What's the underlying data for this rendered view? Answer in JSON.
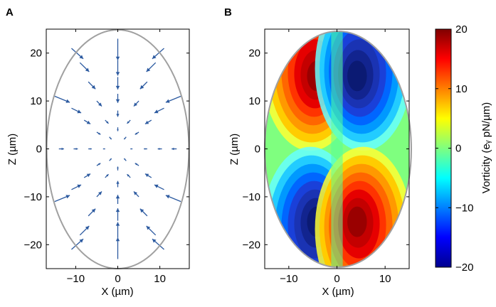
{
  "chart_data": [
    {
      "type": "vector_field",
      "panel": "A",
      "xlabel": "X (µm)",
      "ylabel": "Z (µm)",
      "xlim": [
        -17,
        17
      ],
      "ylim": [
        -25,
        25
      ],
      "xticks": [
        -10,
        0,
        10
      ],
      "yticks": [
        -20,
        -10,
        0,
        10,
        20
      ],
      "xtick_labels": [
        "−10",
        "0",
        "10"
      ],
      "ytick_labels": [
        "−20",
        "−10",
        "0",
        "10",
        "20"
      ],
      "boundary": {
        "shape": "ellipse",
        "semi_x": 17,
        "semi_z": 25,
        "color": "#9e9e9e"
      },
      "arrow_color": "#2c5aa0",
      "flow": "inward toward origin",
      "vectors": [
        {
          "x": 0,
          "z": 23,
          "u": 0,
          "v": -4.5
        },
        {
          "x": 0,
          "z": 18.5,
          "u": 0,
          "v": -3.2
        },
        {
          "x": 0,
          "z": 15,
          "u": 0,
          "v": -2.6
        },
        {
          "x": 0,
          "z": 11.5,
          "u": 0,
          "v": -1.9
        },
        {
          "x": 0,
          "z": 8,
          "u": 0,
          "v": -1.3
        },
        {
          "x": 0,
          "z": 4.5,
          "u": 0,
          "v": -0.8
        },
        {
          "x": 0,
          "z": -4.5,
          "u": 0,
          "v": 0.8
        },
        {
          "x": 0,
          "z": -8,
          "u": 0,
          "v": 1.3
        },
        {
          "x": 0,
          "z": -11.5,
          "u": 0,
          "v": 1.9
        },
        {
          "x": 0,
          "z": -15,
          "u": 0,
          "v": 2.6
        },
        {
          "x": 0,
          "z": -18.5,
          "u": 0,
          "v": 3.2
        },
        {
          "x": 0,
          "z": -23,
          "u": 0,
          "v": 4.5
        },
        {
          "x": -11,
          "z": 21,
          "u": 2.8,
          "v": -2.2
        },
        {
          "x": -9,
          "z": 18,
          "u": 2.2,
          "v": -1.9
        },
        {
          "x": -7,
          "z": 14,
          "u": 1.7,
          "v": -1.5
        },
        {
          "x": -5,
          "z": 10,
          "u": 1.2,
          "v": -1.1
        },
        {
          "x": -3,
          "z": 6,
          "u": 0.8,
          "v": -0.7
        },
        {
          "x": 11,
          "z": 21,
          "u": -2.8,
          "v": -2.2
        },
        {
          "x": 9,
          "z": 18,
          "u": -2.2,
          "v": -1.9
        },
        {
          "x": 7,
          "z": 14,
          "u": -1.7,
          "v": -1.5
        },
        {
          "x": 5,
          "z": 10,
          "u": -1.2,
          "v": -1.1
        },
        {
          "x": 3,
          "z": 6,
          "u": -0.8,
          "v": -0.7
        },
        {
          "x": -11,
          "z": -21,
          "u": 2.8,
          "v": 2.2
        },
        {
          "x": -9,
          "z": -18,
          "u": 2.2,
          "v": 1.9
        },
        {
          "x": -7,
          "z": -14,
          "u": 1.7,
          "v": 1.5
        },
        {
          "x": -5,
          "z": -10,
          "u": 1.2,
          "v": 1.1
        },
        {
          "x": -3,
          "z": -6,
          "u": 0.8,
          "v": 0.7
        },
        {
          "x": 11,
          "z": -21,
          "u": -2.8,
          "v": 2.2
        },
        {
          "x": 9,
          "z": -18,
          "u": -2.2,
          "v": 1.9
        },
        {
          "x": 7,
          "z": -14,
          "u": -1.7,
          "v": 1.5
        },
        {
          "x": 5,
          "z": -10,
          "u": -1.2,
          "v": 1.1
        },
        {
          "x": 3,
          "z": -6,
          "u": -0.8,
          "v": 0.7
        },
        {
          "x": -15,
          "z": 11,
          "u": 3.6,
          "v": -1.3
        },
        {
          "x": -11,
          "z": 8.5,
          "u": 2.3,
          "v": -1.0
        },
        {
          "x": -8,
          "z": 6,
          "u": 1.5,
          "v": -0.8
        },
        {
          "x": -5,
          "z": 3.5,
          "u": 0.9,
          "v": -0.5
        },
        {
          "x": 15,
          "z": 11,
          "u": -3.6,
          "v": -1.3
        },
        {
          "x": 11,
          "z": 8.5,
          "u": -2.3,
          "v": -1.0
        },
        {
          "x": 8,
          "z": 6,
          "u": -1.5,
          "v": -0.8
        },
        {
          "x": 5,
          "z": 3.5,
          "u": -0.9,
          "v": -0.5
        },
        {
          "x": -15,
          "z": -11,
          "u": 3.6,
          "v": 1.3
        },
        {
          "x": -11,
          "z": -8.5,
          "u": 2.3,
          "v": 1.0
        },
        {
          "x": -8,
          "z": -6,
          "u": 1.5,
          "v": 0.8
        },
        {
          "x": -5,
          "z": -3.5,
          "u": 0.9,
          "v": 0.5
        },
        {
          "x": 15,
          "z": -11,
          "u": -3.6,
          "v": 1.3
        },
        {
          "x": 11,
          "z": -8.5,
          "u": -2.3,
          "v": 1.0
        },
        {
          "x": 8,
          "z": -6,
          "u": -1.5,
          "v": 0.8
        },
        {
          "x": 5,
          "z": -3.5,
          "u": -0.9,
          "v": 0.5
        },
        {
          "x": -14,
          "z": 0,
          "u": 1.2,
          "v": 0
        },
        {
          "x": -10.5,
          "z": 0,
          "u": 1.0,
          "v": 0
        },
        {
          "x": -7,
          "z": 0,
          "u": 0.8,
          "v": 0
        },
        {
          "x": -3.5,
          "z": 0,
          "u": 0.5,
          "v": 0
        },
        {
          "x": 14,
          "z": 0,
          "u": -1.2,
          "v": 0
        },
        {
          "x": 10.5,
          "z": 0,
          "u": -1.0,
          "v": 0
        },
        {
          "x": 7,
          "z": 0,
          "u": -0.8,
          "v": 0
        },
        {
          "x": 3.5,
          "z": 0,
          "u": -0.5,
          "v": 0
        },
        {
          "x": -2,
          "z": 2.5,
          "u": 0.5,
          "v": -0.5
        },
        {
          "x": 2,
          "z": 2.5,
          "u": -0.5,
          "v": -0.5
        },
        {
          "x": -2,
          "z": -2.5,
          "u": 0.5,
          "v": 0.5
        },
        {
          "x": 2,
          "z": -2.5,
          "u": -0.5,
          "v": 0.5
        }
      ]
    },
    {
      "type": "heatmap",
      "panel": "B",
      "xlabel": "X (µm)",
      "ylabel": "Z (µm)",
      "xlim": [
        -15,
        15
      ],
      "ylim": [
        -25,
        25
      ],
      "xticks": [
        -10,
        0,
        10
      ],
      "yticks": [
        -20,
        -10,
        0,
        10,
        20
      ],
      "xtick_labels": [
        "−10",
        "0",
        "10"
      ],
      "ytick_labels": [
        "−20",
        "−10",
        "0",
        "10",
        "20"
      ],
      "boundary": {
        "shape": "ellipse",
        "semi_x": 15,
        "semi_z": 25,
        "color": "#9e9e9e"
      },
      "extrema": [
        {
          "x": -4,
          "z": 15,
          "value": 20,
          "sign": "positive"
        },
        {
          "x": 4,
          "z": 15,
          "value": -20,
          "sign": "negative"
        },
        {
          "x": -4,
          "z": -15,
          "value": -20,
          "sign": "negative"
        },
        {
          "x": 4,
          "z": -15,
          "value": 20,
          "sign": "positive"
        }
      ],
      "colorbar": {
        "label": "Vorticity (eᵧ pN/µm)",
        "range": [
          -20,
          20
        ],
        "ticks": [
          -20,
          -10,
          0,
          10,
          20
        ],
        "tick_labels": [
          "−20",
          "−10",
          "0",
          "10",
          "20"
        ],
        "colormap": "jet"
      }
    }
  ],
  "figure": {
    "panel_a_label": "A",
    "panel_b_label": "B"
  }
}
